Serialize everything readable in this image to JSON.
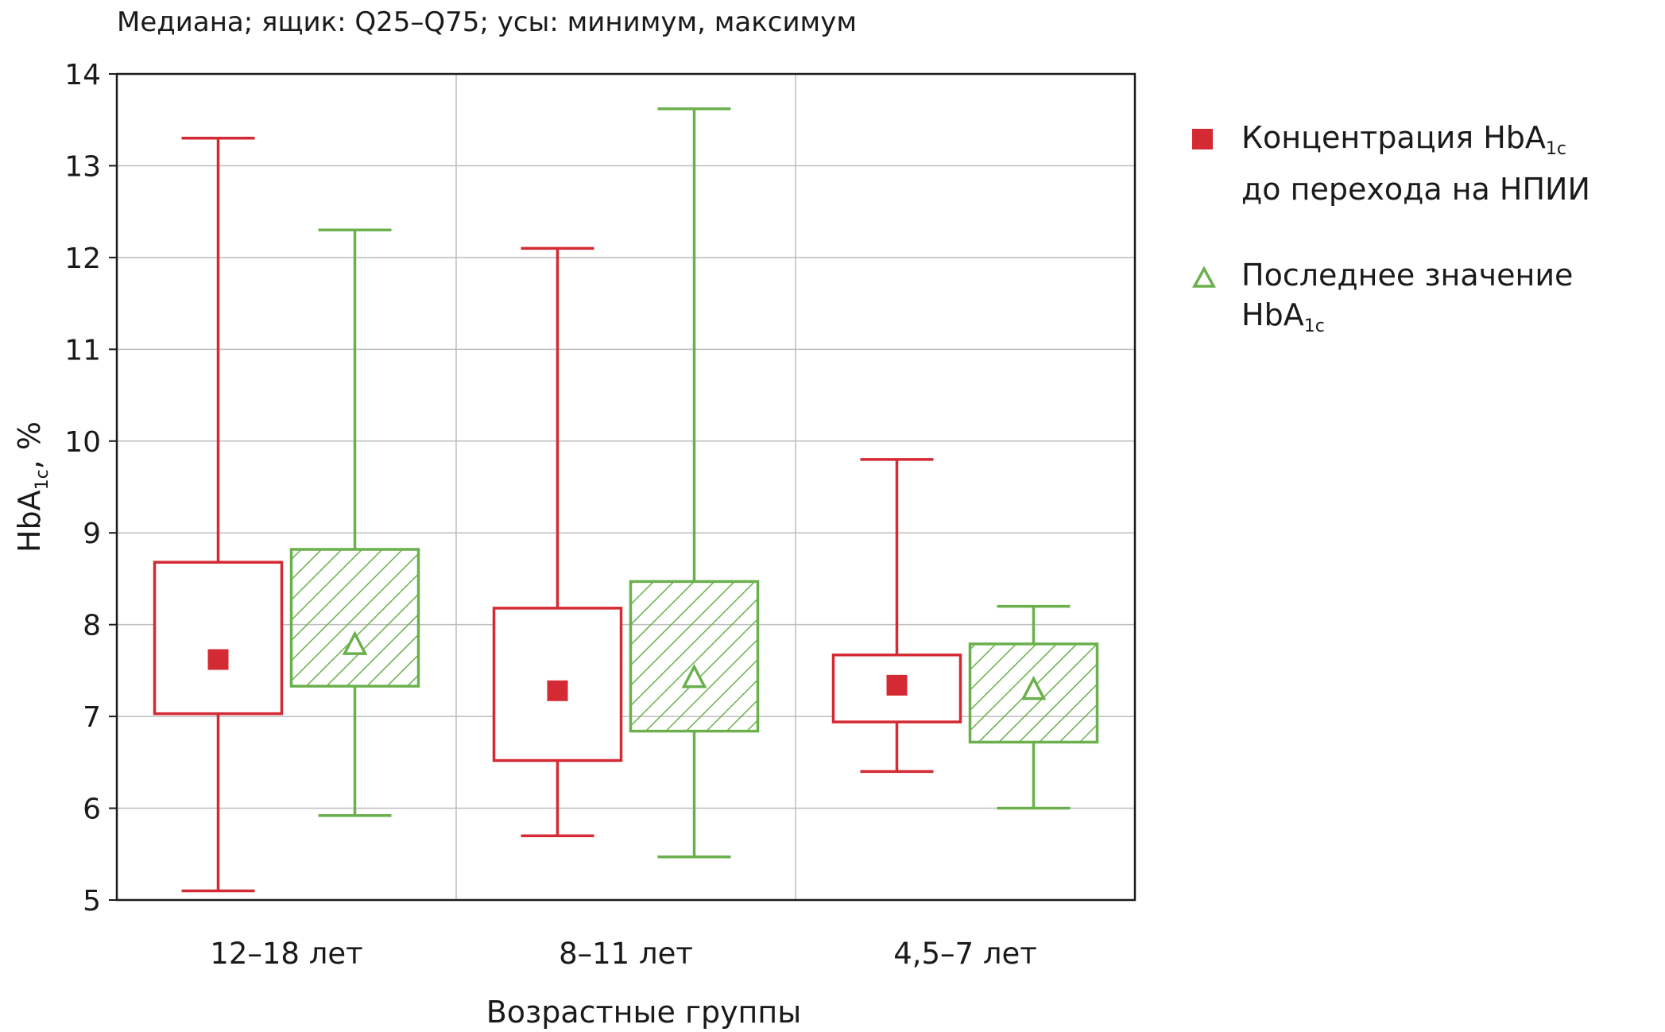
{
  "subtitle": "Медиана; ящик: Q25–Q75; усы: минимум, максимум",
  "legend": {
    "before": {
      "line1_main": "Концентрация HbA",
      "line1_sub": "1c",
      "line2": "до перехода на НПИИ"
    },
    "last": {
      "main": "Последнее значение HbA",
      "sub": "1c"
    }
  },
  "colors": {
    "before": "#d42a33",
    "last": "#6ab04c",
    "grid": "#bdbdbd",
    "axis": "#1a1a1a"
  },
  "chart_data": {
    "type": "box",
    "title": "Медиана; ящик: Q25–Q75; усы: минимум, максимум",
    "xlabel": "Возрастные группы",
    "ylabel": "HbA",
    "ylabel_sub": "1c",
    "ylabel_suffix": ", %",
    "ylim": [
      5,
      14
    ],
    "yticks": [
      5,
      6,
      7,
      8,
      9,
      10,
      11,
      12,
      13,
      14
    ],
    "categories": [
      "12–18 лет",
      "8–11 лет",
      "4,5–7 лет"
    ],
    "series": [
      {
        "name": "Концентрация HbA1c до перехода на НПИИ",
        "marker": "square",
        "boxes": [
          {
            "min": 5.1,
            "q25": 7.03,
            "median": 7.62,
            "q75": 8.68,
            "max": 13.3
          },
          {
            "min": 5.7,
            "q25": 6.52,
            "median": 7.28,
            "q75": 8.18,
            "max": 12.1
          },
          {
            "min": 6.4,
            "q25": 6.94,
            "median": 7.34,
            "q75": 7.67,
            "max": 9.8
          }
        ]
      },
      {
        "name": "Последнее значение HbA1c",
        "marker": "triangle",
        "hatched": true,
        "boxes": [
          {
            "min": 5.92,
            "q25": 7.33,
            "median": 7.78,
            "q75": 8.82,
            "max": 12.3
          },
          {
            "min": 5.47,
            "q25": 6.84,
            "median": 7.42,
            "q75": 8.47,
            "max": 13.62
          },
          {
            "min": 6.0,
            "q25": 6.72,
            "median": 7.29,
            "q75": 7.79,
            "max": 8.2
          }
        ]
      }
    ]
  }
}
